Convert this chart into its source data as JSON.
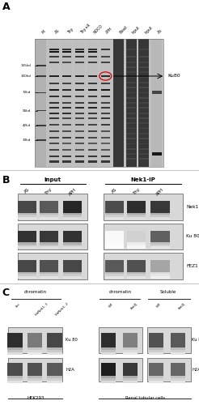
{
  "figure_bg": "#ffffff",
  "panel_A": {
    "label": "A",
    "lane_labels": [
      "M",
      "AS",
      "Thy",
      "Thy+R",
      "NOCO",
      "APH",
      "Bead",
      "Input",
      "Input",
      "Ab"
    ],
    "mw_labels": [
      "135kd",
      "100kd",
      "72kd",
      "55kd",
      "42kd",
      "33kd"
    ],
    "ku80_label": "Ku80"
  },
  "panel_B": {
    "label": "B",
    "group_labels": [
      "Input",
      "Nek1-IP"
    ],
    "lane_labels_left": [
      "AS",
      "Thy",
      "APH"
    ],
    "lane_labels_right": [
      "AS",
      "Thy",
      "APH"
    ],
    "protein_labels": [
      "Nek1",
      "Ku 80",
      "FEZ1"
    ]
  },
  "panel_C": {
    "label": "C",
    "left_title": "chromatin",
    "left_lanes": [
      "Scr",
      "ShNek1- 1",
      "ShNek1- 2"
    ],
    "left_cell": "HEK293",
    "right_title1": "chromatin",
    "right_title2": "Soluble",
    "right_lanes": [
      "WT",
      "Kat2J",
      "WT",
      "Kat2J"
    ],
    "protein_labels": [
      "Ku 80",
      "H2A"
    ],
    "right_cell": "Renal tubular cells"
  }
}
